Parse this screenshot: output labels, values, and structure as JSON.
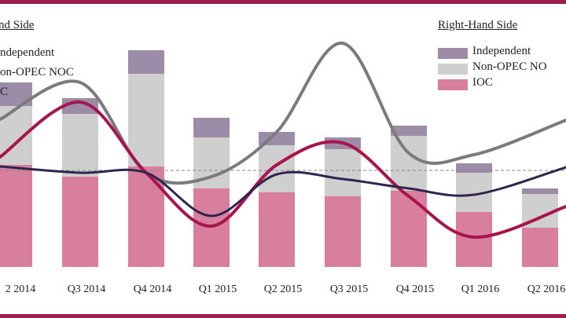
{
  "colors": {
    "frame": "#9e1f4f",
    "independent": "#9d8ca8",
    "non_opec_noc": "#cfcfcf",
    "ioc": "#d97f9e",
    "grey_line": "#7b7b7b",
    "crimson_line": "#a8144b",
    "navy_line": "#2f2550",
    "reference_line": "#888888"
  },
  "legend_left": {
    "title": "nd Side",
    "items": [
      "ndependent",
      "on-OPEC NOC",
      "C"
    ]
  },
  "legend_right": {
    "title": "Right-Hand Side",
    "items": [
      "Independent",
      "Non-OPEC NO",
      "IOC"
    ]
  },
  "chart_data": {
    "type": "bar",
    "categories": [
      "2 2014",
      "Q3 2014",
      "Q4 2014",
      "Q1 2015",
      "Q2 2015",
      "Q3 2015",
      "Q4 2015",
      "Q1 2016",
      "Q2 2016"
    ],
    "series": [
      {
        "name": "IOC",
        "kind": "stacked-bar",
        "values": [
          130,
          115,
          128,
          100,
          95,
          90,
          97,
          70,
          50
        ]
      },
      {
        "name": "Non-OPEC NOC",
        "kind": "stacked-bar",
        "values": [
          75,
          80,
          118,
          65,
          60,
          60,
          70,
          50,
          43
        ]
      },
      {
        "name": "Independent",
        "kind": "stacked-bar",
        "values": [
          30,
          20,
          30,
          25,
          17,
          15,
          13,
          12,
          7
        ]
      }
    ],
    "lines": [
      {
        "kind": "grey",
        "values": [
          188,
          235,
          120,
          115,
          172,
          285,
          145,
          143,
          187
        ]
      },
      {
        "kind": "crimson",
        "values": [
          140,
          210,
          120,
          52,
          130,
          158,
          90,
          38,
          77
        ]
      },
      {
        "kind": "navy",
        "values": [
          128,
          120,
          120,
          65,
          118,
          112,
          100,
          92,
          127
        ]
      }
    ],
    "reference_value": 123,
    "ylim": [
      0,
      310
    ],
    "legend": "top-left and top-right"
  }
}
